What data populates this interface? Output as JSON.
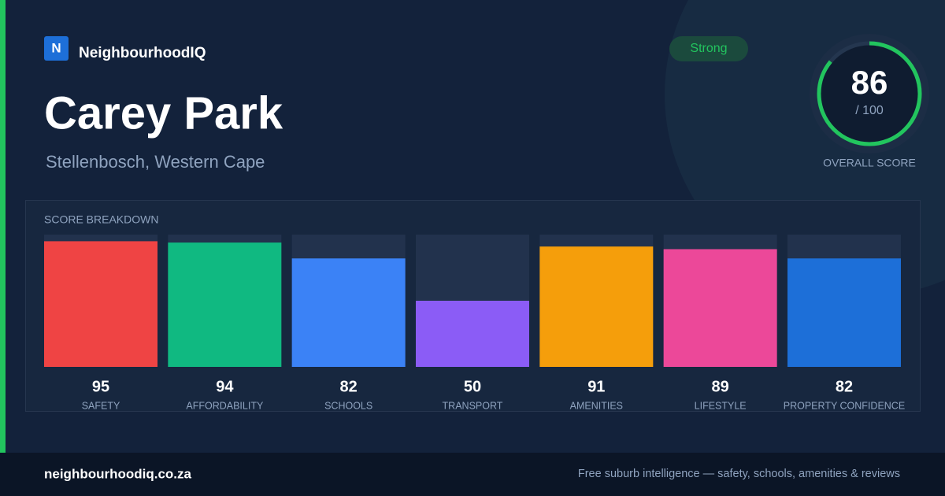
{
  "brand": {
    "logo": "N",
    "name": "NeighbourhoodIQ"
  },
  "title": "Carey Park",
  "subtitle": "Stellenbosch, Western Cape",
  "badge": "Strong",
  "score": 86,
  "score_max": {
    "value": 100,
    "label": "/ 100"
  },
  "score_label": "OVERALL SCORE",
  "chart_data": {
    "type": "bar",
    "title": "SCORE BREAKDOWN",
    "categories": [
      "SAFETY",
      "AFFORDABILITY",
      "SCHOOLS",
      "TRANSPORT",
      "AMENITIES",
      "LIFESTYLE",
      "PROPERTY CONFIDENCE"
    ],
    "values": [
      95,
      94,
      82,
      50,
      91,
      89,
      82
    ],
    "colors": [
      "#ef4444",
      "#10b981",
      "#3b82f6",
      "#8b5cf6",
      "#f59e0b",
      "#ec4899",
      "#1d6fd8"
    ],
    "ylim": [
      0,
      100
    ]
  },
  "footer": {
    "site": "neighbourhoodiq.co.za",
    "tagline": "Free suburb intelligence — safety, schools, amenities & reviews"
  }
}
